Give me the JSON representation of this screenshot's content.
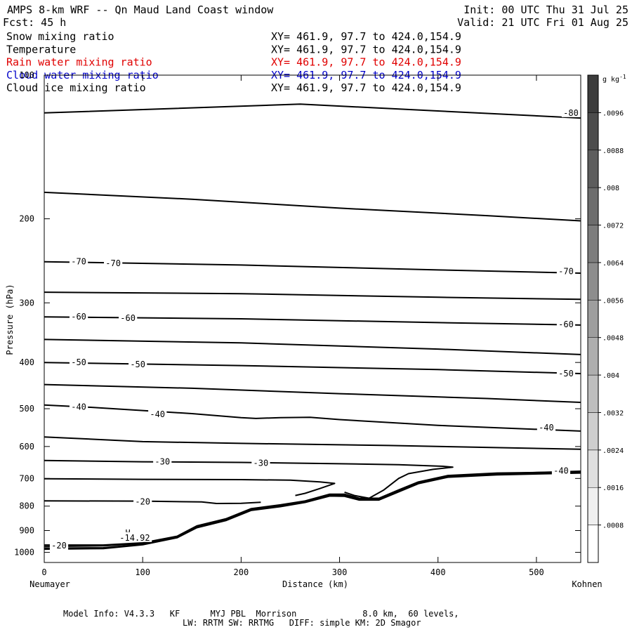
{
  "header": {
    "title": "AMPS 8-km WRF -- Qn Maud Land Coast window",
    "init": "Init: 00 UTC Thu 31 Jul 25",
    "fcst": "Fcst:   45 h",
    "valid": "Valid: 21 UTC Fri 01 Aug 25"
  },
  "fields": [
    {
      "name": "Snow mixing ratio",
      "xy": "XY= 461.9, 97.7 to 424.0,154.9",
      "color": "#000000"
    },
    {
      "name": "Temperature",
      "xy": "XY= 461.9, 97.7 to 424.0,154.9",
      "color": "#000000"
    },
    {
      "name": "Rain water mixing ratio",
      "xy": "XY= 461.9, 97.7 to 424.0,154.9",
      "color": "#e00000"
    },
    {
      "name": "Cloud water mixing ratio",
      "xy": "XY= 461.9, 97.7 to 424.0,154.9",
      "color": "#0000c8"
    },
    {
      "name": "Cloud ice mixing ratio",
      "xy": "XY= 461.9, 97.7 to 424.0,154.9",
      "color": "#000000"
    }
  ],
  "chart_data": {
    "type": "line",
    "xlabel": "Distance (km)",
    "ylabel": "Pressure (hPa)",
    "x_start_label": "Neumayer",
    "x_end_label": "Kohnen",
    "xlim": [
      0,
      545
    ],
    "ylim": [
      1050,
      100
    ],
    "y_log": true,
    "x_ticks": [
      0,
      100,
      200,
      300,
      400,
      500
    ],
    "y_ticks": [
      100,
      200,
      300,
      400,
      500,
      600,
      700,
      800,
      900,
      1000
    ],
    "colorbar": {
      "unit": "g kg-1",
      "levels": [
        ".0008",
        ".0016",
        ".0024",
        ".0032",
        ".004",
        ".0048",
        ".0056",
        ".0064",
        ".0072",
        ".008",
        ".0088",
        ".0096"
      ]
    },
    "series": [
      {
        "points": [
          [
            0,
            120
          ],
          [
            260,
            115
          ],
          [
            545,
            123
          ]
        ]
      },
      {
        "points": [
          [
            0,
            176
          ],
          [
            150,
            182
          ],
          [
            300,
            190
          ],
          [
            450,
            197
          ],
          [
            545,
            202
          ]
        ]
      },
      {
        "points": [
          [
            0,
            246
          ],
          [
            200,
            250
          ],
          [
            400,
            256
          ],
          [
            545,
            260
          ]
        ]
      },
      {
        "points": [
          [
            0,
            285
          ],
          [
            200,
            287
          ],
          [
            400,
            292
          ],
          [
            545,
            295
          ]
        ]
      },
      {
        "points": [
          [
            0,
            321
          ],
          [
            200,
            324
          ],
          [
            400,
            330
          ],
          [
            545,
            334
          ]
        ]
      },
      {
        "points": [
          [
            0,
            358
          ],
          [
            200,
            364
          ],
          [
            400,
            375
          ],
          [
            545,
            385
          ]
        ]
      },
      {
        "points": [
          [
            0,
            400
          ],
          [
            200,
            406
          ],
          [
            400,
            414
          ],
          [
            545,
            422
          ]
        ]
      },
      {
        "points": [
          [
            0,
            445
          ],
          [
            150,
            453
          ],
          [
            300,
            465
          ],
          [
            450,
            476
          ],
          [
            545,
            485
          ]
        ]
      },
      {
        "points": [
          [
            0,
            491
          ],
          [
            50,
            497
          ],
          [
            150,
            512
          ],
          [
            200,
            522
          ],
          [
            215,
            524
          ],
          [
            240,
            522
          ],
          [
            270,
            521
          ],
          [
            300,
            527
          ],
          [
            400,
            542
          ],
          [
            545,
            557
          ]
        ]
      },
      {
        "points": [
          [
            0,
            573
          ],
          [
            100,
            586
          ],
          [
            200,
            591
          ],
          [
            350,
            597
          ],
          [
            545,
            608
          ]
        ]
      },
      {
        "points": [
          [
            0,
            642
          ],
          [
            100,
            646
          ],
          [
            200,
            648
          ],
          [
            300,
            652
          ],
          [
            360,
            655
          ],
          [
            405,
            660
          ],
          [
            415,
            663
          ],
          [
            395,
            670
          ],
          [
            370,
            684
          ],
          [
            360,
            700
          ],
          [
            345,
            740
          ],
          [
            330,
            770
          ],
          [
            315,
            760
          ],
          [
            305,
            748
          ]
        ]
      },
      {
        "points": [
          [
            0,
            701
          ],
          [
            100,
            703
          ],
          [
            200,
            704
          ],
          [
            250,
            706
          ],
          [
            280,
            712
          ],
          [
            295,
            717
          ],
          [
            280,
            735
          ],
          [
            265,
            752
          ],
          [
            255,
            760
          ]
        ]
      },
      {
        "points": [
          [
            0,
            780
          ],
          [
            100,
            781
          ],
          [
            160,
            784
          ],
          [
            175,
            790
          ],
          [
            200,
            789
          ],
          [
            220,
            785
          ]
        ]
      },
      {
        "points": [
          [
            0,
            965
          ],
          [
            60,
            965
          ],
          [
            100,
            955
          ],
          [
            135,
            925
          ],
          [
            155,
            880
          ],
          [
            185,
            850
          ],
          [
            210,
            810
          ],
          [
            240,
            795
          ],
          [
            265,
            780
          ],
          [
            290,
            755
          ],
          [
            305,
            755
          ],
          [
            320,
            770
          ],
          [
            340,
            770
          ],
          [
            360,
            740
          ],
          [
            380,
            712
          ],
          [
            410,
            690
          ],
          [
            460,
            682
          ],
          [
            545,
            678
          ]
        ]
      },
      {
        "points": [
          [
            0,
            972
          ],
          [
            60,
            969
          ],
          [
            100,
            958
          ],
          [
            135,
            928
          ],
          [
            155,
            885
          ],
          [
            185,
            853
          ],
          [
            210,
            813
          ],
          [
            240,
            798
          ],
          [
            265,
            782
          ],
          [
            290,
            758
          ],
          [
            305,
            759
          ],
          [
            320,
            773
          ],
          [
            340,
            773
          ],
          [
            360,
            743
          ],
          [
            380,
            715
          ],
          [
            410,
            693
          ],
          [
            460,
            684
          ],
          [
            545,
            676
          ]
        ]
      },
      {
        "points": [
          [
            0,
            980
          ],
          [
            60,
            978
          ],
          [
            100,
            962
          ],
          [
            135,
            930
          ],
          [
            155,
            886
          ],
          [
            185,
            855
          ],
          [
            210,
            815
          ],
          [
            240,
            800
          ],
          [
            265,
            784
          ],
          [
            290,
            760
          ],
          [
            305,
            761
          ],
          [
            320,
            775
          ],
          [
            340,
            775
          ],
          [
            360,
            745
          ],
          [
            380,
            716
          ],
          [
            410,
            694
          ],
          [
            460,
            686
          ],
          [
            545,
            680
          ]
        ]
      },
      {
        "points": [
          [
            0,
            985
          ],
          [
            60,
            982
          ],
          [
            100,
            964
          ],
          [
            135,
            932
          ],
          [
            155,
            888
          ],
          [
            185,
            857
          ],
          [
            210,
            817
          ],
          [
            240,
            802
          ],
          [
            265,
            786
          ],
          [
            290,
            762
          ],
          [
            305,
            763
          ],
          [
            320,
            777
          ],
          [
            340,
            777
          ],
          [
            360,
            747
          ],
          [
            380,
            718
          ],
          [
            410,
            696
          ],
          [
            460,
            688
          ],
          [
            545,
            682
          ]
        ]
      }
    ],
    "contour_labels": [
      {
        "x": 535,
        "p": 120,
        "text": "-80"
      },
      {
        "x": 35,
        "p": 246,
        "text": "-70"
      },
      {
        "x": 70,
        "p": 248,
        "text": "-70"
      },
      {
        "x": 530,
        "p": 258,
        "text": "-70"
      },
      {
        "x": 35,
        "p": 321,
        "text": "-60"
      },
      {
        "x": 85,
        "p": 323,
        "text": "-60"
      },
      {
        "x": 530,
        "p": 333,
        "text": "-60"
      },
      {
        "x": 35,
        "p": 400,
        "text": "-50"
      },
      {
        "x": 95,
        "p": 404,
        "text": "-50"
      },
      {
        "x": 530,
        "p": 422,
        "text": "-50"
      },
      {
        "x": 35,
        "p": 496,
        "text": "-40"
      },
      {
        "x": 115,
        "p": 514,
        "text": "-40"
      },
      {
        "x": 510,
        "p": 548,
        "text": "-40"
      },
      {
        "x": 120,
        "p": 646,
        "text": "-30"
      },
      {
        "x": 220,
        "p": 650,
        "text": "-30"
      },
      {
        "x": 525,
        "p": 675,
        "text": "-40"
      },
      {
        "x": 100,
        "p": 783,
        "text": "-20"
      },
      {
        "x": 15,
        "p": 968,
        "text": "-20"
      },
      {
        "x": 85,
        "p": 910,
        "text": "H"
      },
      {
        "x": 92,
        "p": 932,
        "text": "-14.92"
      }
    ]
  },
  "footer": {
    "line1": "Model Info: V4.3.3   KF      MYJ PBL  Morrison             8.0 km,  60 levels,",
    "line2": "LW: RRTM SW: RRTMG   DIFF: simple KM: 2D Smagor"
  }
}
